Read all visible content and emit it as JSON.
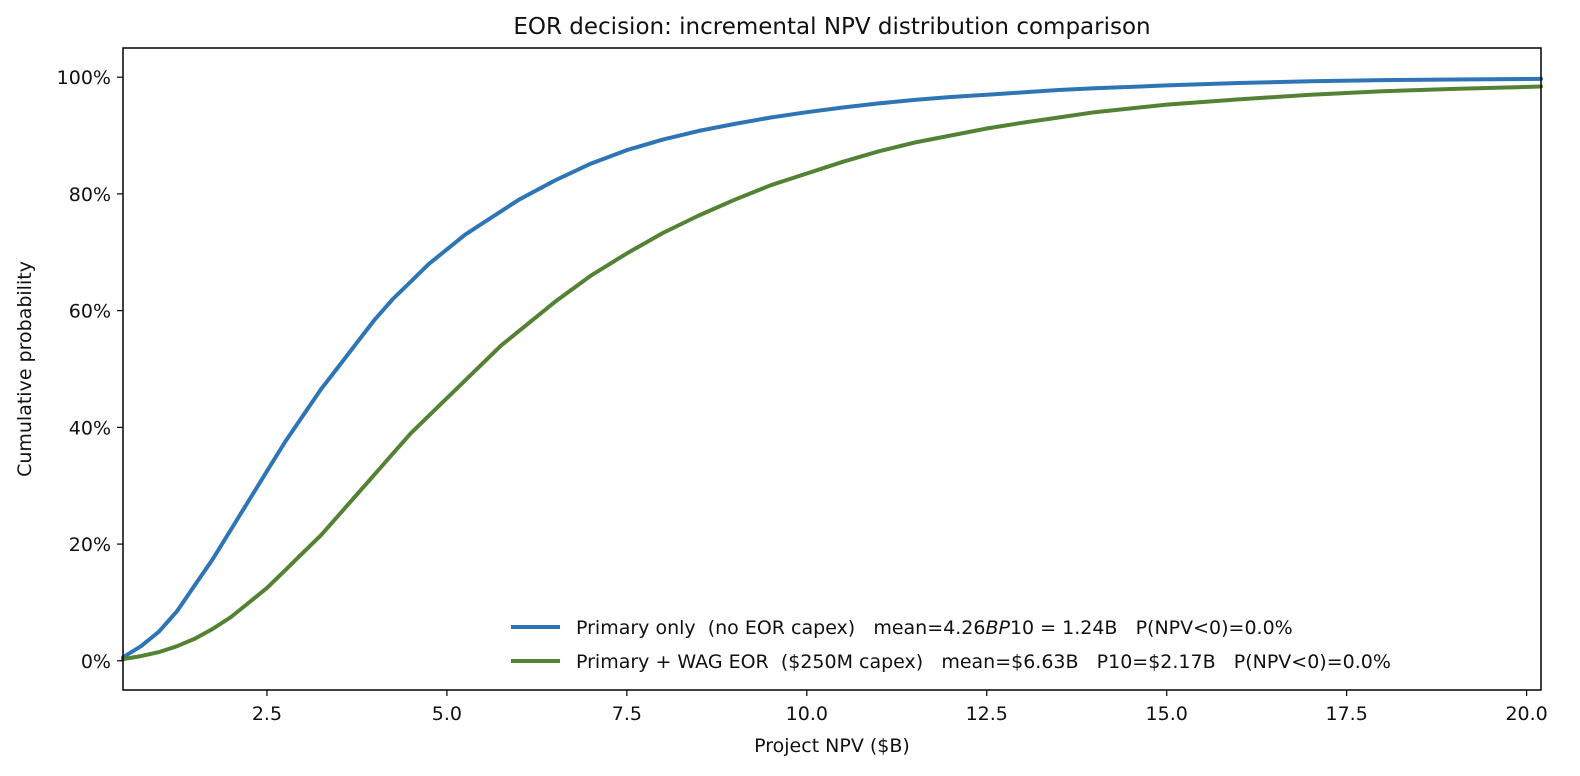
{
  "chart_data": {
    "type": "line",
    "title": "EOR decision: incremental NPV distribution comparison",
    "xlabel": "Project NPV  ($B)",
    "ylabel": "Cumulative probability",
    "xlim": [
      0.5,
      20.2
    ],
    "ylim": [
      -5,
      105
    ],
    "xticks": [
      2.5,
      5.0,
      7.5,
      10.0,
      12.5,
      15.0,
      17.5,
      20.0
    ],
    "xtick_labels": [
      "2.5",
      "5.0",
      "7.5",
      "10.0",
      "12.5",
      "15.0",
      "17.5",
      "20.0"
    ],
    "yticks": [
      0,
      20,
      40,
      60,
      80,
      100
    ],
    "ytick_labels": [
      "0%",
      "20%",
      "40%",
      "60%",
      "80%",
      "100%"
    ],
    "grid": false,
    "legend_position": "lower-right",
    "series": [
      {
        "name": "Primary only  (no EOR capex)   mean=4.26BP10=1.24B   P(NPV<0)=0.0%",
        "legend_parts": [
          {
            "text": "Primary only  (no EOR capex)   mean=4.26",
            "style": "normal"
          },
          {
            "text": "BP",
            "style": "italic"
          },
          {
            "text": "10 = 1.24B   P(NPV<0)=0.0%",
            "style": "normal"
          }
        ],
        "color": "#2e75b6",
        "x": [
          0.5,
          0.75,
          1.0,
          1.25,
          1.5,
          1.75,
          2.0,
          2.25,
          2.5,
          2.75,
          3.0,
          3.25,
          3.5,
          3.75,
          4.0,
          4.25,
          4.5,
          4.75,
          5.0,
          5.25,
          5.5,
          5.75,
          6.0,
          6.5,
          7.0,
          7.5,
          8.0,
          8.5,
          9.0,
          9.5,
          10.0,
          10.5,
          11.0,
          11.5,
          12.0,
          12.5,
          13.0,
          13.5,
          14.0,
          15.0,
          16.0,
          17.0,
          18.0,
          19.0,
          20.2
        ],
        "y": [
          0.6,
          2.5,
          5.0,
          8.5,
          13.0,
          17.5,
          22.5,
          27.5,
          32.5,
          37.5,
          42.0,
          46.5,
          50.5,
          54.5,
          58.5,
          62.0,
          65.0,
          68.0,
          70.5,
          73.0,
          75.0,
          77.0,
          79.0,
          82.3,
          85.2,
          87.5,
          89.3,
          90.8,
          92.0,
          93.1,
          94.0,
          94.8,
          95.5,
          96.1,
          96.6,
          97.0,
          97.4,
          97.8,
          98.1,
          98.6,
          99.0,
          99.3,
          99.5,
          99.6,
          99.7
        ]
      },
      {
        "name": "Primary + WAG EOR  ($250M capex)   mean=$6.63B   P10=$2.17B   P(NPV<0)=0.0%",
        "legend_parts": [
          {
            "text": "Primary + WAG EOR  ($250M capex)   mean=$6.63B   P10=$2.17B   P(NPV<0)=0.0%",
            "style": "normal"
          }
        ],
        "color": "#548235",
        "x": [
          0.5,
          0.75,
          1.0,
          1.25,
          1.5,
          1.75,
          2.0,
          2.25,
          2.5,
          2.75,
          3.0,
          3.25,
          3.5,
          3.75,
          4.0,
          4.25,
          4.5,
          4.75,
          5.0,
          5.25,
          5.5,
          5.75,
          6.0,
          6.5,
          7.0,
          7.5,
          8.0,
          8.5,
          9.0,
          9.5,
          10.0,
          10.5,
          11.0,
          11.5,
          12.0,
          12.5,
          13.0,
          13.5,
          14.0,
          15.0,
          16.0,
          17.0,
          18.0,
          19.0,
          20.2
        ],
        "y": [
          0.3,
          0.8,
          1.5,
          2.5,
          3.8,
          5.5,
          7.5,
          10.0,
          12.5,
          15.5,
          18.5,
          21.5,
          25.0,
          28.5,
          32.0,
          35.5,
          39.0,
          42.0,
          45.0,
          48.0,
          51.0,
          54.0,
          56.5,
          61.5,
          66.0,
          69.8,
          73.3,
          76.3,
          79.0,
          81.5,
          83.5,
          85.5,
          87.3,
          88.8,
          90.0,
          91.2,
          92.2,
          93.1,
          94.0,
          95.3,
          96.2,
          97.0,
          97.6,
          98.0,
          98.4
        ]
      }
    ]
  }
}
